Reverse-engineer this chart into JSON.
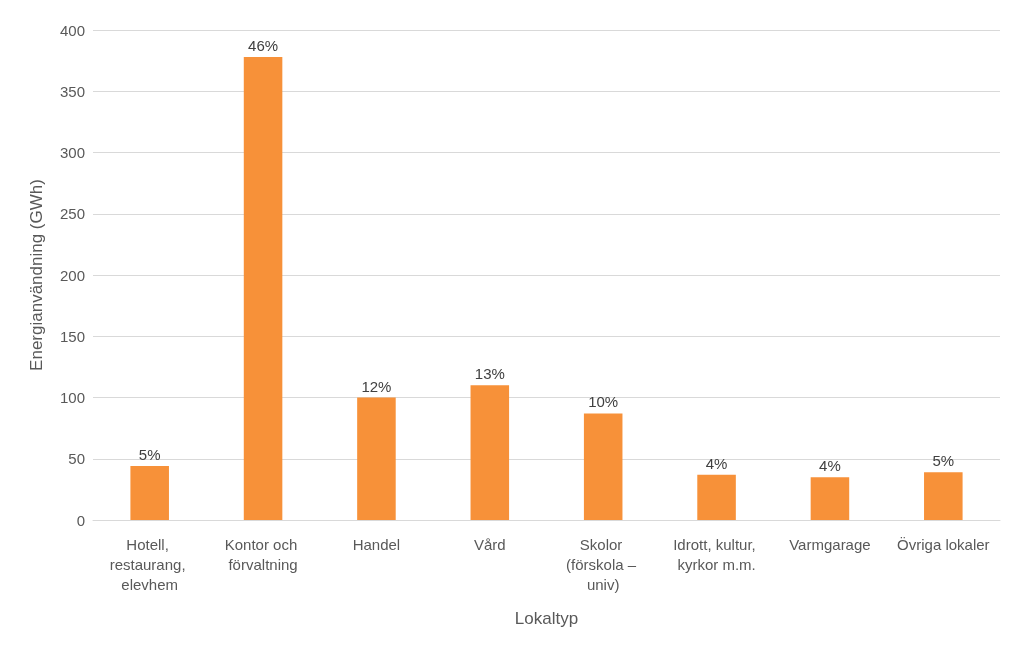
{
  "chart_data": {
    "type": "bar",
    "xlabel": "Lokaltyp",
    "ylabel": "Energianvändning (GWh)",
    "categories": [
      "Hotell, restaurang, elevhem",
      "Kontor och förvaltning",
      "Handel",
      "Vård",
      "Skolor (förskola – univ)",
      "Idrott, kultur, kyrkor m.m.",
      "Varmgarage",
      "Övriga lokaler"
    ],
    "values": [
      44,
      378,
      100,
      110,
      87,
      37,
      35,
      39
    ],
    "annotations": [
      {
        "text": "5%",
        "x": "Hotell, restaurang, elevhem",
        "y": 44
      },
      {
        "text": "46%",
        "x": "Kontor och förvaltning",
        "y": 378
      },
      {
        "text": "12%",
        "x": "Handel",
        "y": 100
      },
      {
        "text": "13%",
        "x": "Vård",
        "y": 110
      },
      {
        "text": "10%",
        "x": "Skolor (förskola – univ)",
        "y": 87
      },
      {
        "text": "4%",
        "x": "Idrott, kultur, kyrkor m.m.",
        "y": 37
      },
      {
        "text": "4%",
        "x": "Varmgarage",
        "y": 35
      },
      {
        "text": "5%",
        "x": "Övriga lokaler",
        "y": 39
      }
    ],
    "color": "#f79139",
    "ylim": [
      0,
      400
    ],
    "yticks": [
      0,
      50,
      100,
      150,
      200,
      250,
      300,
      350,
      400
    ],
    "grid": "y"
  }
}
